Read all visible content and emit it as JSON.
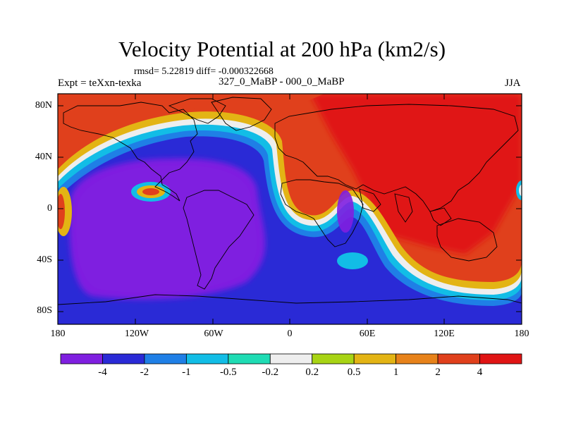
{
  "title": "Velocity Potential at 200 hPa (km2/s)",
  "stats": "rmsd= 5.22819 diff= -0.000322668",
  "left_label": "Expt = teXxn-texka",
  "center_label": "327_0_MaBP - 000_0_MaBP",
  "right_label": "JJA",
  "lat_ticks": [
    "80N",
    "40N",
    "0",
    "40S",
    "80S"
  ],
  "lon_ticks": [
    "180",
    "120W",
    "60W",
    "0",
    "60E",
    "120E",
    "180"
  ],
  "colorbar": {
    "colors": [
      "#7f1fe0",
      "#2a2ad6",
      "#1f7fe6",
      "#12bde6",
      "#1fdcb4",
      "#eeeeee",
      "#a8d414",
      "#e3b414",
      "#e7821a",
      "#e0401c",
      "#e01414"
    ],
    "labels": [
      "-4",
      "-2",
      "-1",
      "-0.5",
      "-0.2",
      "0.2",
      "0.5",
      "1",
      "2",
      "4"
    ]
  }
}
